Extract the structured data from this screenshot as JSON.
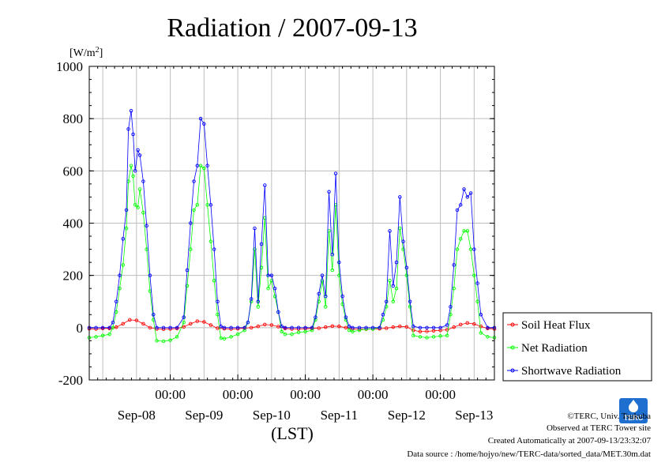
{
  "chart_data": {
    "type": "line",
    "title": "Radiation / 2007-09-13",
    "ylabel": "[W/m2]",
    "ylabel_base": "[W/m",
    "ylabel_sup": "2",
    "ylabel_close": "]",
    "xlabel": "(LST)",
    "ylim": [
      -200,
      1000
    ],
    "xlim_days": [
      -0.2,
      5.8
    ],
    "y_ticks": [
      "-200",
      "0",
      "200",
      "400",
      "600",
      "800",
      "1000"
    ],
    "x_tick_labels": [
      "00:00",
      "00:00",
      "00:00",
      "00:00",
      "00:00"
    ],
    "date_labels": [
      "Sep-08",
      "Sep-09",
      "Sep-10",
      "Sep-11",
      "Sep-12",
      "Sep-13"
    ],
    "grid": true,
    "legend_position": "right",
    "series": [
      {
        "name": "Soil Heat Flux",
        "color": "#ff0000",
        "points": [
          [
            -0.2,
            -4
          ],
          [
            -0.1,
            -5
          ],
          [
            0.0,
            -3
          ],
          [
            0.1,
            -3
          ],
          [
            0.2,
            2
          ],
          [
            0.3,
            15
          ],
          [
            0.4,
            30
          ],
          [
            0.5,
            28
          ],
          [
            0.6,
            15
          ],
          [
            0.7,
            0
          ],
          [
            0.8,
            -5
          ],
          [
            0.9,
            -6
          ],
          [
            1.0,
            -5
          ],
          [
            1.1,
            -3
          ],
          [
            1.2,
            3
          ],
          [
            1.3,
            15
          ],
          [
            1.4,
            25
          ],
          [
            1.5,
            22
          ],
          [
            1.6,
            10
          ],
          [
            1.7,
            -2
          ],
          [
            1.8,
            -4
          ],
          [
            1.9,
            -5
          ],
          [
            2.0,
            -4
          ],
          [
            2.1,
            -2
          ],
          [
            2.2,
            0
          ],
          [
            2.3,
            5
          ],
          [
            2.4,
            12
          ],
          [
            2.5,
            10
          ],
          [
            2.6,
            4
          ],
          [
            2.7,
            -3
          ],
          [
            2.8,
            -5
          ],
          [
            2.9,
            -5
          ],
          [
            3.0,
            -4
          ],
          [
            3.1,
            -3
          ],
          [
            3.2,
            -2
          ],
          [
            3.3,
            2
          ],
          [
            3.4,
            6
          ],
          [
            3.5,
            5
          ],
          [
            3.6,
            0
          ],
          [
            3.7,
            -5
          ],
          [
            3.8,
            -6
          ],
          [
            3.9,
            -6
          ],
          [
            4.0,
            -5
          ],
          [
            4.1,
            -4
          ],
          [
            4.2,
            -2
          ],
          [
            4.3,
            2
          ],
          [
            4.4,
            5
          ],
          [
            4.5,
            3
          ],
          [
            4.6,
            -10
          ],
          [
            4.7,
            -15
          ],
          [
            4.8,
            -14
          ],
          [
            4.9,
            -12
          ],
          [
            5.0,
            -10
          ],
          [
            5.1,
            -8
          ],
          [
            5.2,
            2
          ],
          [
            5.3,
            12
          ],
          [
            5.4,
            18
          ],
          [
            5.5,
            14
          ],
          [
            5.6,
            5
          ],
          [
            5.7,
            -3
          ],
          [
            5.8,
            -5
          ]
        ]
      },
      {
        "name": "Net Radiation",
        "color": "#00ff00",
        "points": [
          [
            -0.2,
            -38
          ],
          [
            -0.1,
            -35
          ],
          [
            0.0,
            -30
          ],
          [
            0.1,
            -25
          ],
          [
            0.15,
            0
          ],
          [
            0.2,
            60
          ],
          [
            0.25,
            150
          ],
          [
            0.3,
            240
          ],
          [
            0.35,
            380
          ],
          [
            0.38,
            560
          ],
          [
            0.42,
            620
          ],
          [
            0.45,
            580
          ],
          [
            0.48,
            470
          ],
          [
            0.52,
            460
          ],
          [
            0.55,
            530
          ],
          [
            0.6,
            440
          ],
          [
            0.65,
            300
          ],
          [
            0.7,
            140
          ],
          [
            0.75,
            30
          ],
          [
            0.8,
            -50
          ],
          [
            0.9,
            -52
          ],
          [
            1.0,
            -48
          ],
          [
            1.1,
            -35
          ],
          [
            1.2,
            20
          ],
          [
            1.25,
            160
          ],
          [
            1.3,
            300
          ],
          [
            1.35,
            450
          ],
          [
            1.4,
            470
          ],
          [
            1.45,
            620
          ],
          [
            1.5,
            610
          ],
          [
            1.55,
            470
          ],
          [
            1.6,
            330
          ],
          [
            1.65,
            180
          ],
          [
            1.7,
            50
          ],
          [
            1.75,
            -40
          ],
          [
            1.8,
            -42
          ],
          [
            1.9,
            -35
          ],
          [
            2.0,
            -25
          ],
          [
            2.1,
            -10
          ],
          [
            2.15,
            20
          ],
          [
            2.2,
            100
          ],
          [
            2.25,
            300
          ],
          [
            2.3,
            80
          ],
          [
            2.35,
            230
          ],
          [
            2.4,
            420
          ],
          [
            2.45,
            150
          ],
          [
            2.5,
            180
          ],
          [
            2.55,
            120
          ],
          [
            2.6,
            60
          ],
          [
            2.65,
            -15
          ],
          [
            2.7,
            -25
          ],
          [
            2.8,
            -25
          ],
          [
            2.9,
            -18
          ],
          [
            3.0,
            -15
          ],
          [
            3.1,
            -10
          ],
          [
            3.15,
            30
          ],
          [
            3.2,
            100
          ],
          [
            3.25,
            180
          ],
          [
            3.3,
            80
          ],
          [
            3.35,
            370
          ],
          [
            3.4,
            220
          ],
          [
            3.45,
            470
          ],
          [
            3.5,
            200
          ],
          [
            3.55,
            90
          ],
          [
            3.6,
            30
          ],
          [
            3.65,
            -10
          ],
          [
            3.7,
            -15
          ],
          [
            3.8,
            -10
          ],
          [
            3.9,
            -5
          ],
          [
            4.0,
            -5
          ],
          [
            4.1,
            0
          ],
          [
            4.15,
            30
          ],
          [
            4.2,
            80
          ],
          [
            4.25,
            180
          ],
          [
            4.3,
            100
          ],
          [
            4.35,
            150
          ],
          [
            4.4,
            380
          ],
          [
            4.45,
            300
          ],
          [
            4.5,
            200
          ],
          [
            4.55,
            80
          ],
          [
            4.6,
            -30
          ],
          [
            4.7,
            -35
          ],
          [
            4.8,
            -38
          ],
          [
            4.9,
            -35
          ],
          [
            5.0,
            -32
          ],
          [
            5.1,
            -30
          ],
          [
            5.15,
            50
          ],
          [
            5.2,
            150
          ],
          [
            5.25,
            300
          ],
          [
            5.3,
            340
          ],
          [
            5.35,
            370
          ],
          [
            5.4,
            370
          ],
          [
            5.45,
            300
          ],
          [
            5.5,
            200
          ],
          [
            5.55,
            100
          ],
          [
            5.6,
            -20
          ],
          [
            5.7,
            -35
          ],
          [
            5.8,
            -38
          ]
        ]
      },
      {
        "name": "Shortwave Radiation",
        "color": "#0000ff",
        "points": [
          [
            -0.2,
            0
          ],
          [
            -0.1,
            0
          ],
          [
            0.0,
            0
          ],
          [
            0.1,
            0
          ],
          [
            0.15,
            20
          ],
          [
            0.2,
            100
          ],
          [
            0.25,
            200
          ],
          [
            0.3,
            340
          ],
          [
            0.35,
            450
          ],
          [
            0.38,
            760
          ],
          [
            0.42,
            830
          ],
          [
            0.45,
            740
          ],
          [
            0.48,
            600
          ],
          [
            0.52,
            680
          ],
          [
            0.55,
            660
          ],
          [
            0.6,
            560
          ],
          [
            0.65,
            390
          ],
          [
            0.7,
            200
          ],
          [
            0.75,
            50
          ],
          [
            0.8,
            0
          ],
          [
            0.9,
            0
          ],
          [
            1.0,
            0
          ],
          [
            1.1,
            0
          ],
          [
            1.2,
            40
          ],
          [
            1.25,
            220
          ],
          [
            1.3,
            400
          ],
          [
            1.35,
            560
          ],
          [
            1.4,
            620
          ],
          [
            1.45,
            800
          ],
          [
            1.5,
            780
          ],
          [
            1.55,
            620
          ],
          [
            1.6,
            470
          ],
          [
            1.65,
            300
          ],
          [
            1.7,
            100
          ],
          [
            1.75,
            5
          ],
          [
            1.8,
            0
          ],
          [
            1.9,
            0
          ],
          [
            2.0,
            0
          ],
          [
            2.1,
            0
          ],
          [
            2.15,
            20
          ],
          [
            2.2,
            110
          ],
          [
            2.25,
            380
          ],
          [
            2.3,
            100
          ],
          [
            2.35,
            320
          ],
          [
            2.4,
            545
          ],
          [
            2.45,
            200
          ],
          [
            2.5,
            200
          ],
          [
            2.55,
            150
          ],
          [
            2.6,
            60
          ],
          [
            2.65,
            5
          ],
          [
            2.7,
            0
          ],
          [
            2.8,
            0
          ],
          [
            2.9,
            0
          ],
          [
            3.0,
            0
          ],
          [
            3.1,
            0
          ],
          [
            3.15,
            40
          ],
          [
            3.2,
            130
          ],
          [
            3.25,
            200
          ],
          [
            3.3,
            120
          ],
          [
            3.35,
            520
          ],
          [
            3.4,
            280
          ],
          [
            3.45,
            590
          ],
          [
            3.5,
            250
          ],
          [
            3.55,
            120
          ],
          [
            3.6,
            40
          ],
          [
            3.65,
            5
          ],
          [
            3.7,
            0
          ],
          [
            3.8,
            0
          ],
          [
            3.9,
            0
          ],
          [
            4.0,
            0
          ],
          [
            4.1,
            0
          ],
          [
            4.15,
            50
          ],
          [
            4.2,
            100
          ],
          [
            4.25,
            370
          ],
          [
            4.3,
            160
          ],
          [
            4.35,
            250
          ],
          [
            4.4,
            500
          ],
          [
            4.45,
            330
          ],
          [
            4.5,
            230
          ],
          [
            4.55,
            100
          ],
          [
            4.6,
            5
          ],
          [
            4.7,
            0
          ],
          [
            4.8,
            0
          ],
          [
            4.9,
            0
          ],
          [
            5.0,
            0
          ],
          [
            5.1,
            10
          ],
          [
            5.15,
            80
          ],
          [
            5.2,
            240
          ],
          [
            5.25,
            450
          ],
          [
            5.3,
            470
          ],
          [
            5.35,
            530
          ],
          [
            5.4,
            500
          ],
          [
            5.45,
            515
          ],
          [
            5.5,
            300
          ],
          [
            5.55,
            170
          ],
          [
            5.6,
            50
          ],
          [
            5.7,
            0
          ],
          [
            5.8,
            0
          ]
        ]
      }
    ]
  },
  "credits": {
    "line1": "©TERC, Univ. Tsukuba",
    "line2": "Observed at TERC Tower site",
    "line3": "Created Automatically at 2007-09-13/23:32:07",
    "line4": "Data source : /home/hojyo/new/TERC-data/sorted_data/MET.30m.dat"
  },
  "logo": {
    "text": "TERC",
    "color": "#1f6fd0"
  }
}
